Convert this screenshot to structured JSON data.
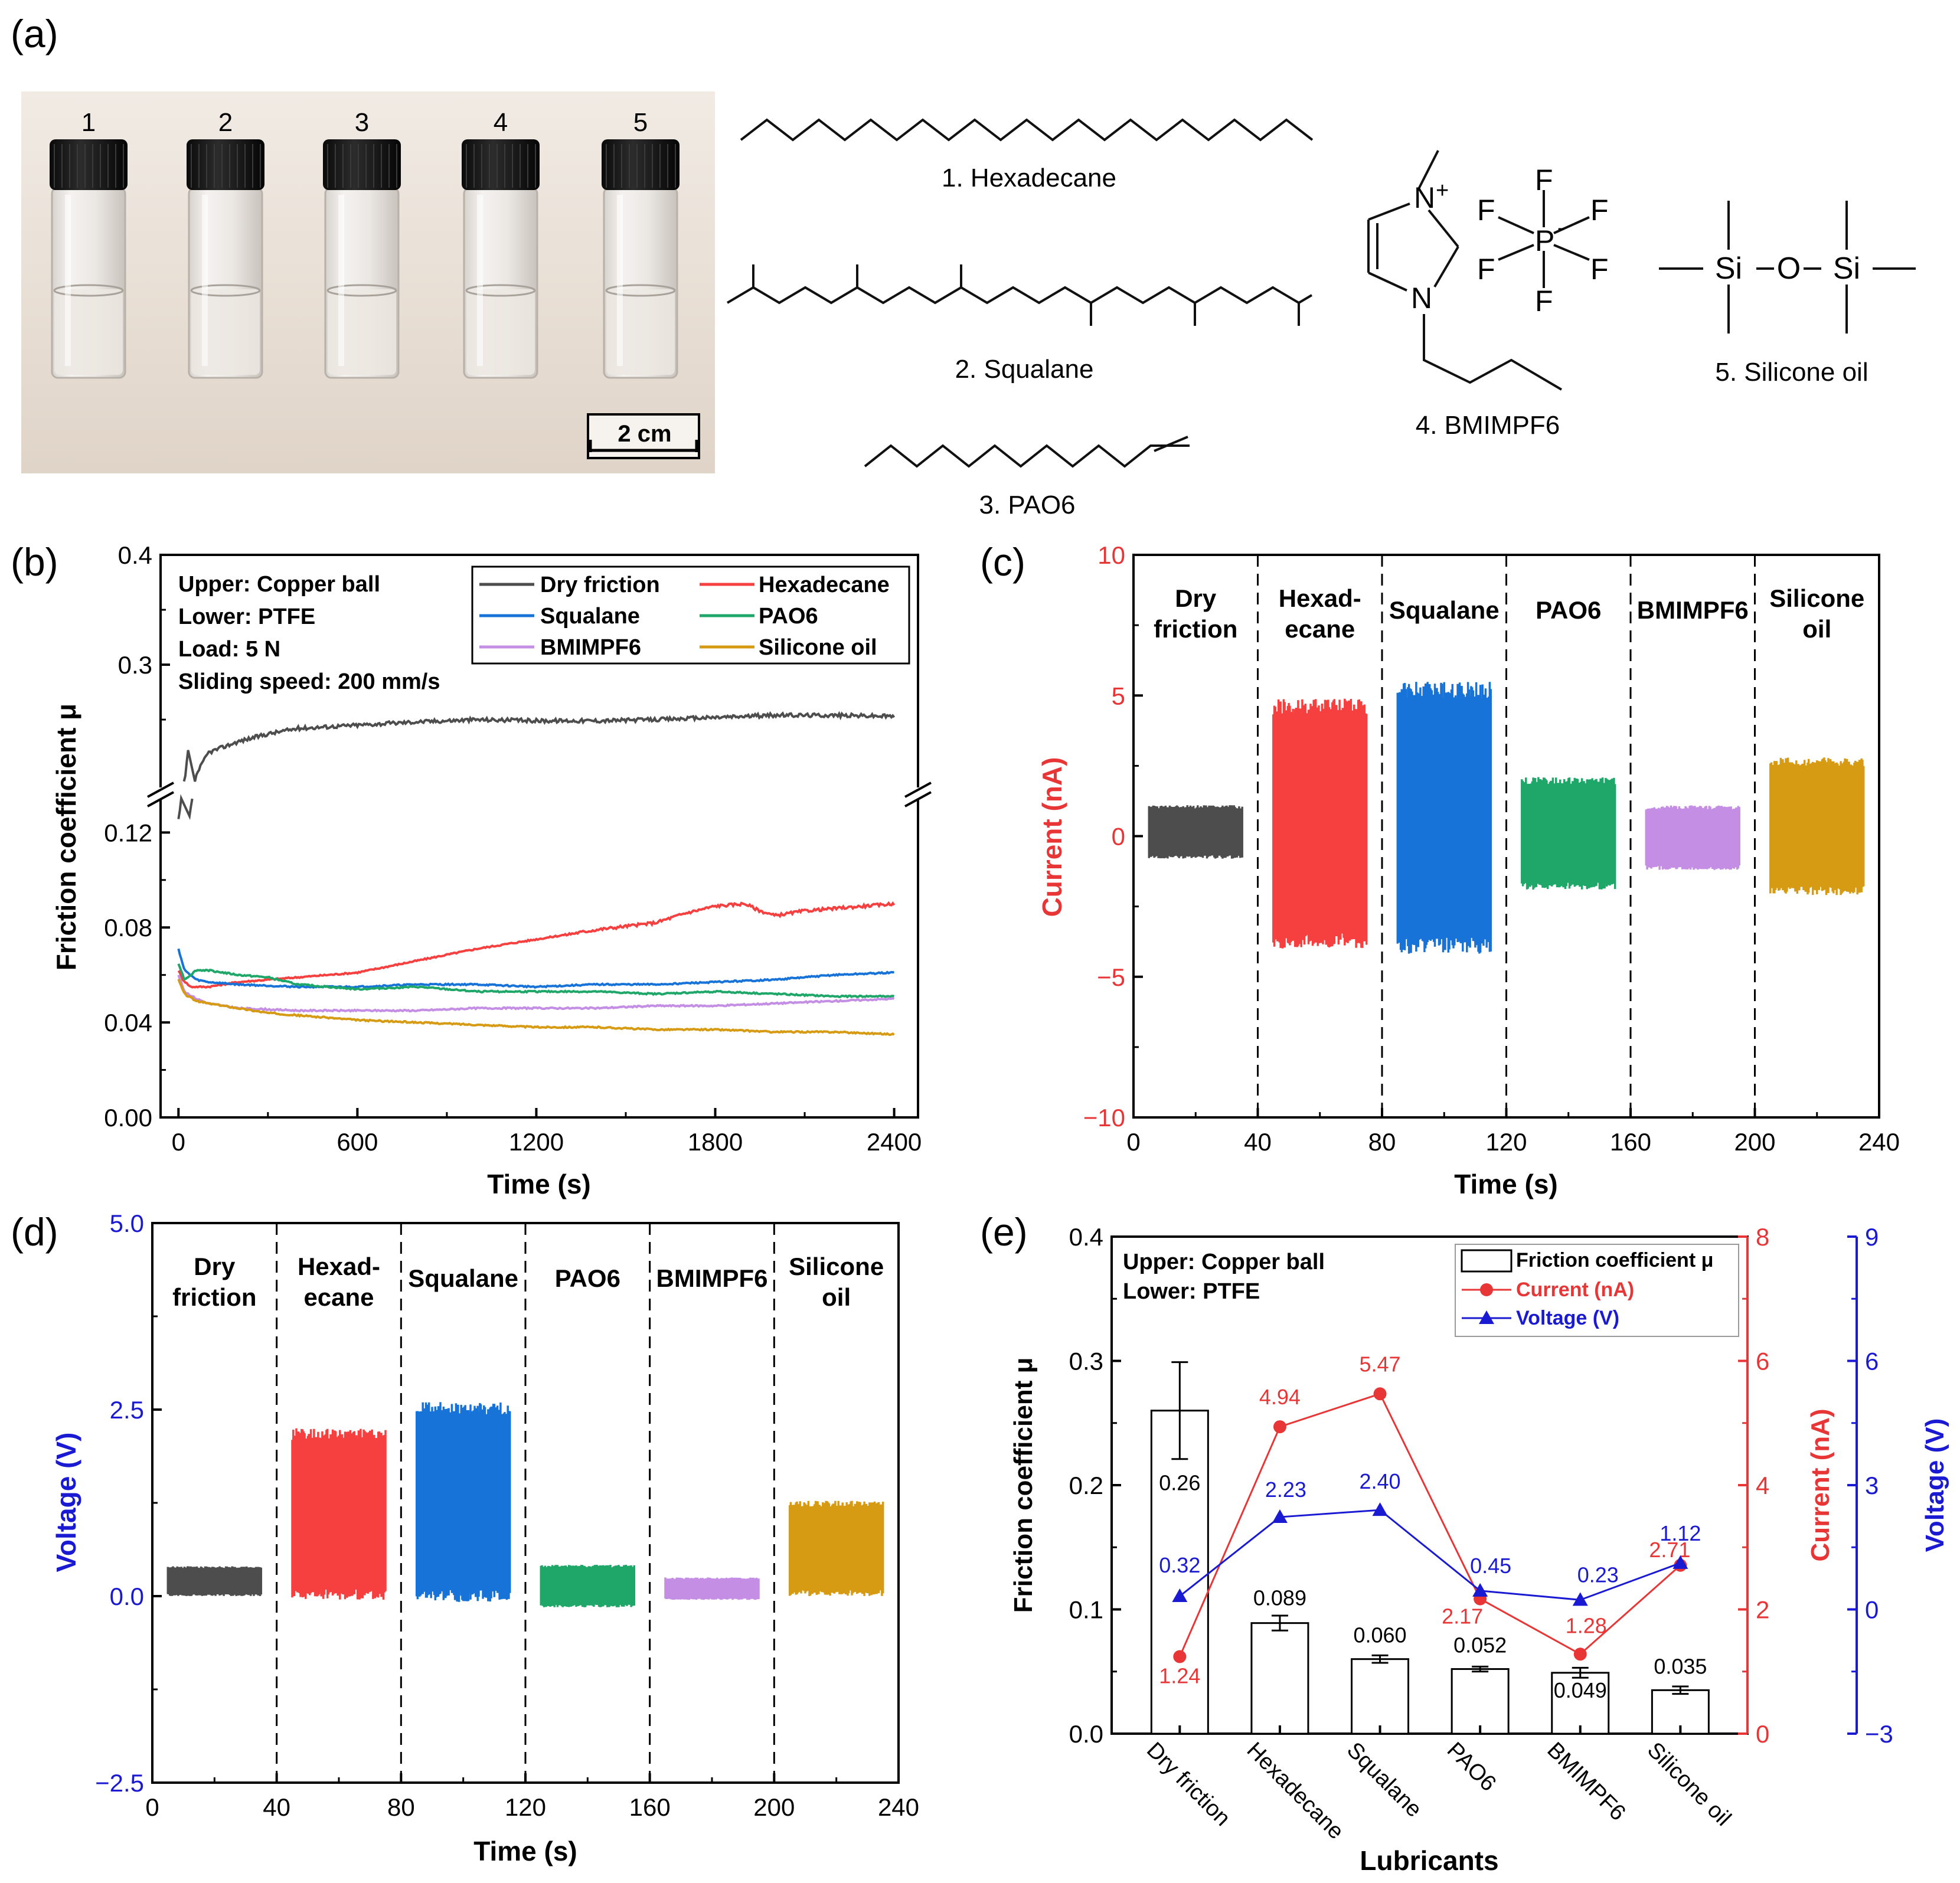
{
  "figure": {
    "panel_labels": [
      "(a)",
      "(b)",
      "(c)",
      "(d)",
      "(e)"
    ],
    "panel_a": {
      "vial_numbers": [
        "1",
        "2",
        "3",
        "4",
        "5"
      ],
      "scale_bar": "2 cm",
      "compounds": [
        "1. Hexadecane",
        "2. Squalane",
        "3. PAO6",
        "4. BMIMPF6",
        "5. Silicone oil"
      ],
      "atom_labels": {
        "n_plus": "N",
        "plus": "+",
        "n": "N",
        "p": "P",
        "minus": "-",
        "f": "F",
        "si": "Si",
        "o": "O"
      }
    },
    "panel_b": {
      "conditions": [
        "Upper: Copper ball",
        "Lower: PTFE",
        "Load: 5 N",
        "Sliding speed: 200 mm/s"
      ]
    },
    "panel_e": {
      "conditions": [
        "Upper: Copper ball",
        "Lower: PTFE"
      ]
    },
    "colors": {
      "dry": "#4d4d4d",
      "hexadecane": "#f5403f",
      "squalane": "#1773d8",
      "pao6": "#1ea769",
      "bmimpf6": "#c48ee5",
      "silicone": "#d69a13",
      "current_axis": "#e83636",
      "voltage_axis": "#1a1ad2"
    }
  },
  "chart_data": [
    {
      "panel": "b",
      "type": "line",
      "title": "",
      "xlabel": "Time (s)",
      "ylabel": "Friction coefficient μ",
      "xlim": [
        -60,
        2480
      ],
      "x_ticks": [
        "0",
        "600",
        "1200",
        "1800",
        "2400"
      ],
      "y_ticks_lower": [
        "0.00",
        "0.04",
        "0.08",
        "0.12"
      ],
      "y_ticks_upper": [
        "0.3",
        "0.4"
      ],
      "ylim_lower": [
        0,
        0.136
      ],
      "ylim_upper": [
        0.185,
        0.4
      ],
      "axis_break": true,
      "legend": [
        "Dry friction",
        "Hexadecane",
        "Squalane",
        "PAO6",
        "BMIMPF6",
        "Silicone oil"
      ],
      "legend_position": "top-right",
      "series": [
        {
          "name": "Dry friction",
          "x": [
            0,
            30,
            60,
            100,
            200,
            300,
            400,
            600,
            800,
            1000,
            1200,
            1400,
            1600,
            1800,
            2000,
            2200,
            2400
          ],
          "values": [
            0.125,
            0.15,
            0.2,
            0.22,
            0.23,
            0.237,
            0.242,
            0.245,
            0.248,
            0.25,
            0.249,
            0.249,
            0.25,
            0.252,
            0.254,
            0.254,
            0.253
          ]
        },
        {
          "name": "Hexadecane",
          "x": [
            0,
            15,
            40,
            100,
            200,
            300,
            400,
            600,
            800,
            1000,
            1200,
            1400,
            1600,
            1700,
            1800,
            1900,
            1950,
            2000,
            2100,
            2200,
            2300,
            2400
          ],
          "values": [
            0.062,
            0.058,
            0.055,
            0.055,
            0.057,
            0.058,
            0.059,
            0.061,
            0.066,
            0.071,
            0.075,
            0.079,
            0.082,
            0.086,
            0.089,
            0.09,
            0.087,
            0.085,
            0.087,
            0.088,
            0.089,
            0.09
          ]
        },
        {
          "name": "Squalane",
          "x": [
            0,
            20,
            60,
            100,
            200,
            400,
            600,
            800,
            1000,
            1200,
            1400,
            1600,
            1800,
            2000,
            2200,
            2400
          ],
          "values": [
            0.071,
            0.062,
            0.058,
            0.057,
            0.056,
            0.055,
            0.055,
            0.056,
            0.056,
            0.055,
            0.056,
            0.056,
            0.057,
            0.058,
            0.06,
            0.061
          ]
        },
        {
          "name": "PAO6",
          "x": [
            0,
            20,
            60,
            100,
            150,
            200,
            300,
            400,
            600,
            800,
            1000,
            1200,
            1400,
            1600,
            1800,
            2000,
            2200,
            2400
          ],
          "values": [
            0.065,
            0.058,
            0.062,
            0.062,
            0.061,
            0.06,
            0.059,
            0.056,
            0.054,
            0.055,
            0.053,
            0.053,
            0.053,
            0.052,
            0.053,
            0.052,
            0.051,
            0.051
          ]
        },
        {
          "name": "BMIMPF6",
          "x": [
            0,
            20,
            60,
            100,
            200,
            400,
            600,
            800,
            1000,
            1200,
            1400,
            1600,
            1800,
            2000,
            2200,
            2400
          ],
          "values": [
            0.06,
            0.053,
            0.05,
            0.048,
            0.046,
            0.045,
            0.045,
            0.045,
            0.046,
            0.046,
            0.046,
            0.047,
            0.047,
            0.048,
            0.049,
            0.05
          ]
        },
        {
          "name": "Silicone oil",
          "x": [
            0,
            20,
            60,
            100,
            200,
            300,
            400,
            600,
            800,
            1000,
            1200,
            1400,
            1600,
            1800,
            2000,
            2200,
            2400
          ],
          "values": [
            0.058,
            0.052,
            0.049,
            0.048,
            0.046,
            0.044,
            0.043,
            0.041,
            0.04,
            0.039,
            0.038,
            0.038,
            0.037,
            0.037,
            0.036,
            0.036,
            0.035
          ]
        }
      ]
    },
    {
      "panel": "c",
      "type": "area",
      "xlabel": "Time (s)",
      "ylabel": "Current (nA)",
      "xlim": [
        0,
        240
      ],
      "ylim": [
        -10,
        10
      ],
      "x_ticks": [
        "0",
        "40",
        "80",
        "120",
        "160",
        "200",
        "240"
      ],
      "y_ticks": [
        "−10",
        "−5",
        "0",
        "5",
        "10"
      ],
      "divider_x": [
        40,
        80,
        120,
        160,
        200
      ],
      "segment_labels": [
        [
          "Dry",
          "friction"
        ],
        [
          "Hexad-",
          "ecane"
        ],
        [
          "Squalane"
        ],
        [
          "PAO6"
        ],
        [
          "BMIMPF6"
        ],
        [
          "Silicone",
          "oil"
        ]
      ],
      "series": [
        {
          "name": "Dry friction",
          "x_range": [
            5,
            35
          ],
          "min": -0.8,
          "max": 1.1
        },
        {
          "name": "Hexadecane",
          "x_range": [
            45,
            75
          ],
          "min": -4.0,
          "max": 4.9
        },
        {
          "name": "Squalane",
          "x_range": [
            85,
            115
          ],
          "min": -4.2,
          "max": 5.5
        },
        {
          "name": "PAO6",
          "x_range": [
            125,
            155
          ],
          "min": -1.9,
          "max": 2.1
        },
        {
          "name": "BMIMPF6",
          "x_range": [
            165,
            195
          ],
          "min": -1.2,
          "max": 1.1
        },
        {
          "name": "Silicone oil",
          "x_range": [
            205,
            235
          ],
          "min": -2.1,
          "max": 2.8
        }
      ]
    },
    {
      "panel": "d",
      "type": "area",
      "xlabel": "Time (s)",
      "ylabel": "Voltage (V)",
      "xlim": [
        0,
        240
      ],
      "ylim": [
        -2.5,
        5.0
      ],
      "x_ticks": [
        "0",
        "40",
        "80",
        "120",
        "160",
        "200",
        "240"
      ],
      "y_ticks": [
        "−2.5",
        "0.0",
        "2.5",
        "5.0"
      ],
      "divider_x": [
        40,
        80,
        120,
        160,
        200
      ],
      "segment_labels": [
        [
          "Dry",
          "friction"
        ],
        [
          "Hexad-",
          "ecane"
        ],
        [
          "Squalane"
        ],
        [
          "PAO6"
        ],
        [
          "BMIMPF6"
        ],
        [
          "Silicone",
          "oil"
        ]
      ],
      "series": [
        {
          "name": "Dry friction",
          "x_range": [
            5,
            35
          ],
          "min": 0.0,
          "max": 0.4
        },
        {
          "name": "Hexadecane",
          "x_range": [
            45,
            75
          ],
          "min": -0.05,
          "max": 2.25
        },
        {
          "name": "Squalane",
          "x_range": [
            85,
            115
          ],
          "min": -0.08,
          "max": 2.6
        },
        {
          "name": "PAO6",
          "x_range": [
            125,
            155
          ],
          "min": -0.15,
          "max": 0.42
        },
        {
          "name": "BMIMPF6",
          "x_range": [
            165,
            195
          ],
          "min": -0.05,
          "max": 0.25
        },
        {
          "name": "Silicone oil",
          "x_range": [
            205,
            235
          ],
          "min": 0.0,
          "max": 1.28
        }
      ]
    },
    {
      "panel": "e",
      "type": "bar",
      "xlabel": "Lubricants",
      "ylabel": "Friction coefficient μ",
      "y2label": "Current (nA)",
      "y3label": "Voltage (V)",
      "categories": [
        "Dry friction",
        "Hexadecane",
        "Squalane",
        "PAO6",
        "BMIMPF6",
        "Silicone oil"
      ],
      "ylim": [
        0,
        0.4
      ],
      "y2lim": [
        0,
        8
      ],
      "y3lim": [
        -3,
        9
      ],
      "y_ticks": [
        "0.0",
        "0.1",
        "0.2",
        "0.3",
        "0.4"
      ],
      "y2_ticks": [
        "0",
        "2",
        "4",
        "6",
        "8"
      ],
      "y3_ticks": [
        "−3",
        "0",
        "3",
        "6",
        "9"
      ],
      "legend": [
        "Friction coefficient μ",
        "Current (nA)",
        "Voltage (V)"
      ],
      "legend_position": "top-right",
      "series": [
        {
          "name": "Friction coefficient μ",
          "values": [
            0.26,
            0.089,
            0.06,
            0.052,
            0.049,
            0.035
          ],
          "errors": [
            0.039,
            0.006,
            0.003,
            0.002,
            0.004,
            0.003
          ],
          "labels": [
            "0.26",
            "0.089",
            "0.060",
            "0.052",
            "0.049",
            "0.035"
          ]
        },
        {
          "name": "Current (nA)",
          "values": [
            1.24,
            4.94,
            5.47,
            2.17,
            1.28,
            2.71
          ],
          "labels": [
            "1.24",
            "4.94",
            "5.47",
            "2.17",
            "1.28",
            "2.71"
          ]
        },
        {
          "name": "Voltage (V)",
          "values": [
            0.32,
            2.23,
            2.4,
            0.45,
            0.23,
            1.12
          ],
          "labels": [
            "0.32",
            "2.23",
            "2.40",
            "0.45",
            "0.23",
            "1.12"
          ]
        }
      ]
    }
  ]
}
